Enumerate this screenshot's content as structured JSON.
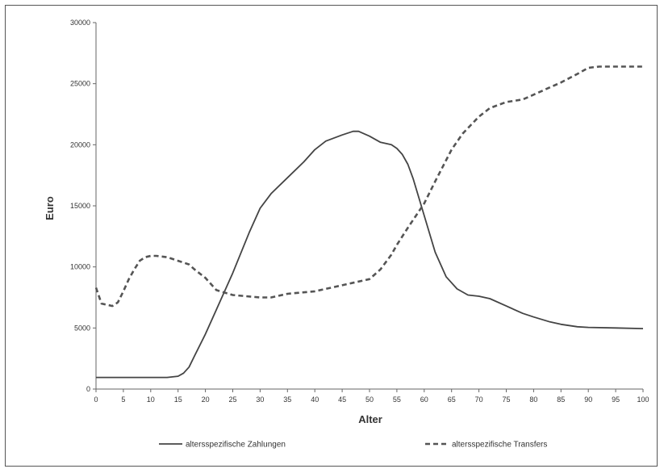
{
  "chart_data": {
    "type": "line",
    "title": "",
    "xlabel": "Alter",
    "ylabel": "Euro",
    "xlim": [
      0,
      100
    ],
    "ylim": [
      0,
      30000
    ],
    "x_ticks": [
      0,
      5,
      10,
      15,
      20,
      25,
      30,
      35,
      40,
      45,
      50,
      55,
      60,
      65,
      70,
      75,
      80,
      85,
      90,
      95,
      100
    ],
    "y_ticks": [
      0,
      5000,
      10000,
      15000,
      20000,
      25000,
      30000
    ],
    "grid": false,
    "legend_position": "bottom",
    "series": [
      {
        "name": "altersspezifische Zahlungen",
        "style": "solid",
        "color": "#444444",
        "x": [
          0,
          5,
          10,
          13,
          15,
          16,
          17,
          18,
          20,
          22,
          25,
          28,
          30,
          32,
          35,
          38,
          40,
          42,
          45,
          47,
          48,
          50,
          52,
          54,
          55,
          56,
          57,
          58,
          60,
          62,
          64,
          66,
          68,
          70,
          72,
          75,
          78,
          80,
          83,
          85,
          88,
          90,
          95,
          100
        ],
        "y": [
          950,
          950,
          950,
          950,
          1050,
          1300,
          1800,
          2700,
          4500,
          6500,
          9500,
          12800,
          14800,
          16000,
          17300,
          18600,
          19600,
          20300,
          20800,
          21100,
          21100,
          20700,
          20200,
          20000,
          19700,
          19200,
          18400,
          17200,
          14200,
          11200,
          9200,
          8200,
          7700,
          7600,
          7400,
          6800,
          6200,
          5900,
          5500,
          5300,
          5100,
          5050,
          5000,
          4950
        ]
      },
      {
        "name": "altersspezifische Transfers",
        "style": "dashed",
        "color": "#555555",
        "x": [
          0,
          1,
          2,
          3,
          4,
          5,
          6,
          7,
          8,
          9,
          10,
          11,
          12,
          13,
          15,
          17,
          18,
          20,
          22,
          25,
          30,
          32,
          35,
          40,
          45,
          47,
          50,
          52,
          54,
          55,
          57,
          60,
          62,
          65,
          67,
          70,
          72,
          75,
          78,
          80,
          83,
          85,
          88,
          90,
          92,
          95,
          100
        ],
        "y": [
          8300,
          7000,
          6900,
          6800,
          7100,
          8000,
          9000,
          9800,
          10500,
          10800,
          10900,
          10900,
          10850,
          10800,
          10500,
          10200,
          9800,
          9100,
          8100,
          7700,
          7500,
          7500,
          7800,
          8000,
          8500,
          8700,
          9000,
          9800,
          11000,
          11800,
          13200,
          15200,
          17000,
          19600,
          20900,
          22300,
          23000,
          23500,
          23700,
          24100,
          24700,
          25100,
          25800,
          26300,
          26400,
          26400,
          26400
        ]
      }
    ]
  }
}
